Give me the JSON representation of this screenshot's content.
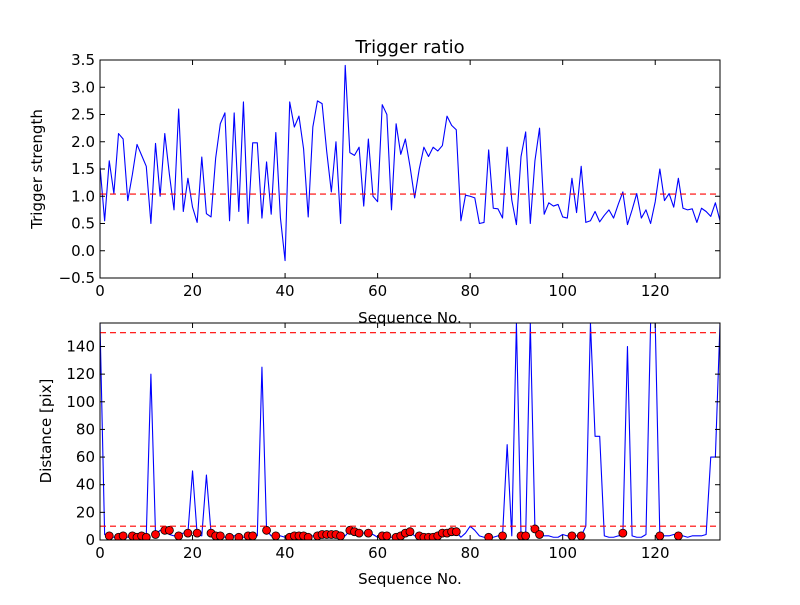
{
  "chart_data": [
    {
      "type": "line",
      "title": "Trigger ratio",
      "xlabel": "Sequence No.",
      "ylabel": "Trigger strength",
      "xlim": [
        0,
        134
      ],
      "ylim": [
        -0.5,
        3.5
      ],
      "xticks": [
        0,
        20,
        40,
        60,
        80,
        100,
        120
      ],
      "yticks": [
        -0.5,
        0.0,
        0.5,
        1.0,
        1.5,
        2.0,
        2.5,
        3.0,
        3.5
      ],
      "xtick_labels": [
        "0",
        "20",
        "40",
        "60",
        "80",
        "100",
        "120"
      ],
      "ytick_labels": [
        "−0.5",
        "0.0",
        "0.5",
        "1.0",
        "1.5",
        "2.0",
        "2.5",
        "3.0",
        "3.5"
      ],
      "series": [
        {
          "color": "#0000ff",
          "style": "line",
          "x": [
            0,
            1,
            2,
            3,
            4,
            5,
            6,
            7,
            8,
            9,
            10,
            11,
            12,
            13,
            14,
            15,
            16,
            17,
            18,
            19,
            20,
            21,
            22,
            23,
            24,
            25,
            26,
            27,
            28,
            29,
            30,
            31,
            32,
            33,
            34,
            35,
            36,
            37,
            38,
            39,
            40,
            41,
            42,
            43,
            44,
            45,
            46,
            47,
            48,
            49,
            50,
            51,
            52,
            53,
            54,
            55,
            56,
            57,
            58,
            59,
            60,
            61,
            62,
            63,
            64,
            65,
            66,
            67,
            68,
            69,
            70,
            71,
            72,
            73,
            74,
            75,
            76,
            77,
            78,
            79,
            80,
            81,
            82,
            83,
            84,
            85,
            86,
            87,
            88,
            89,
            90,
            91,
            92,
            93,
            94,
            95,
            96,
            97,
            98,
            99,
            100,
            101,
            102,
            103,
            104,
            105,
            106,
            107,
            108,
            109,
            110,
            111,
            112,
            113,
            114,
            115,
            116,
            117,
            118,
            119,
            120,
            121,
            122,
            123,
            124,
            125,
            126,
            127,
            128,
            129,
            130,
            131,
            132,
            133,
            134
          ],
          "y": [
            1.55,
            0.55,
            1.65,
            1.05,
            2.15,
            2.05,
            0.92,
            1.4,
            1.95,
            1.75,
            1.55,
            0.5,
            1.97,
            1.0,
            2.15,
            1.4,
            0.75,
            2.6,
            0.72,
            1.33,
            0.8,
            0.52,
            1.72,
            0.68,
            0.62,
            1.7,
            2.33,
            2.53,
            0.55,
            2.53,
            0.72,
            2.73,
            0.5,
            1.98,
            1.98,
            0.6,
            1.63,
            0.67,
            2.17,
            0.6,
            -0.18,
            2.73,
            2.27,
            2.47,
            1.87,
            0.62,
            2.27,
            2.75,
            2.7,
            1.82,
            1.08,
            2.0,
            0.5,
            3.4,
            1.8,
            1.75,
            1.9,
            0.82,
            2.05,
            1.0,
            0.9,
            2.68,
            2.5,
            0.75,
            2.33,
            1.77,
            2.05,
            1.55,
            0.97,
            1.5,
            1.9,
            1.73,
            1.9,
            1.83,
            1.93,
            2.47,
            2.3,
            2.22,
            0.55,
            1.02,
            1.0,
            0.97,
            0.5,
            0.52,
            1.85,
            0.78,
            0.77,
            0.6,
            1.9,
            0.93,
            0.48,
            1.73,
            2.18,
            0.5,
            1.65,
            2.25,
            0.67,
            0.88,
            0.82,
            0.85,
            0.62,
            0.6,
            1.33,
            0.7,
            1.55,
            0.52,
            0.55,
            0.72,
            0.53,
            0.65,
            0.75,
            0.6,
            0.85,
            1.08,
            0.48,
            0.75,
            1.05,
            0.6,
            0.75,
            0.5,
            0.9,
            1.5,
            0.92,
            1.05,
            0.8,
            1.33,
            0.78,
            0.75,
            0.77,
            0.52,
            0.78,
            0.72,
            0.63,
            0.88,
            0.55
          ]
        },
        {
          "color": "#ff0000",
          "style": "dashed",
          "x": [
            0,
            134
          ],
          "y": [
            1.04,
            1.04
          ]
        }
      ]
    },
    {
      "type": "line",
      "title": "",
      "xlabel": "Sequence No.",
      "ylabel": "Distance [pix]",
      "xlim": [
        0,
        134
      ],
      "ylim": [
        0,
        157
      ],
      "xticks": [
        0,
        20,
        40,
        60,
        80,
        100,
        120
      ],
      "yticks": [
        0,
        20,
        40,
        60,
        80,
        100,
        120,
        140
      ],
      "xtick_labels": [
        "0",
        "20",
        "40",
        "60",
        "80",
        "100",
        "120"
      ],
      "ytick_labels": [
        "0",
        "20",
        "40",
        "60",
        "80",
        "100",
        "120",
        "140"
      ],
      "series": [
        {
          "color": "#0000ff",
          "style": "line",
          "x": [
            0,
            1,
            2,
            3,
            4,
            5,
            6,
            7,
            8,
            9,
            10,
            11,
            12,
            13,
            14,
            15,
            16,
            17,
            18,
            19,
            20,
            21,
            22,
            23,
            24,
            25,
            26,
            27,
            28,
            29,
            30,
            31,
            32,
            33,
            34,
            35,
            36,
            37,
            38,
            39,
            40,
            41,
            42,
            43,
            44,
            45,
            46,
            47,
            48,
            49,
            50,
            51,
            52,
            53,
            54,
            55,
            56,
            57,
            58,
            59,
            60,
            61,
            62,
            63,
            64,
            65,
            66,
            67,
            68,
            69,
            70,
            71,
            72,
            73,
            74,
            75,
            76,
            77,
            78,
            79,
            80,
            81,
            82,
            83,
            84,
            85,
            86,
            87,
            88,
            89,
            90,
            91,
            92,
            93,
            94,
            95,
            96,
            97,
            98,
            99,
            100,
            101,
            102,
            103,
            104,
            105,
            106,
            107,
            108,
            109,
            110,
            111,
            112,
            113,
            114,
            115,
            116,
            117,
            118,
            119,
            120,
            121,
            122,
            123,
            124,
            125,
            126,
            127,
            128,
            129,
            130,
            131,
            132,
            133,
            134
          ],
          "y": [
            157,
            4,
            2,
            2,
            3,
            3,
            2,
            2,
            3,
            2,
            3,
            120,
            4,
            7,
            7,
            4,
            3,
            4,
            5,
            5,
            50,
            4,
            3,
            47,
            5,
            4,
            3,
            2,
            3,
            3,
            3,
            2,
            2,
            3,
            3,
            125,
            7,
            3,
            2,
            3,
            2,
            3,
            3,
            3,
            3,
            2,
            3,
            4,
            4,
            4,
            4,
            4,
            3,
            3,
            7,
            6,
            5,
            5,
            5,
            4,
            2,
            3,
            3,
            2,
            2,
            3,
            5,
            6,
            3,
            2,
            2,
            2,
            3,
            2,
            5,
            5,
            6,
            6,
            2,
            5,
            10,
            7,
            3,
            2,
            2,
            2,
            3,
            3,
            69,
            3,
            157,
            3,
            3,
            157,
            8,
            4,
            3,
            3,
            2,
            2,
            4,
            3,
            3,
            3,
            3,
            10,
            157,
            75,
            75,
            3,
            2,
            2,
            3,
            3,
            140,
            3,
            2,
            2,
            4,
            157,
            157,
            3,
            3,
            3,
            4,
            3,
            3,
            2,
            3,
            3,
            3,
            4,
            60,
            60,
            157
          ]
        },
        {
          "color": "#ff0000",
          "style": "markers",
          "x": [
            2,
            4,
            5,
            7,
            8,
            9,
            10,
            12,
            14,
            15,
            17,
            19,
            21,
            24,
            25,
            26,
            28,
            30,
            32,
            33,
            36,
            38,
            41,
            42,
            43,
            44,
            45,
            47,
            48,
            49,
            50,
            51,
            52,
            54,
            55,
            56,
            58,
            61,
            62,
            64,
            65,
            66,
            67,
            69,
            70,
            71,
            72,
            73,
            74,
            75,
            76,
            77,
            84,
            87,
            91,
            92,
            94,
            95,
            102,
            104,
            113,
            121,
            125
          ],
          "y": [
            3,
            2,
            3,
            3,
            2,
            3,
            2,
            4,
            7,
            7,
            3,
            5,
            5,
            5,
            3,
            3,
            2,
            2,
            3,
            3,
            7,
            3,
            2,
            3,
            3,
            3,
            2,
            3,
            4,
            4,
            4,
            4,
            3,
            7,
            6,
            5,
            5,
            3,
            3,
            2,
            3,
            5,
            6,
            3,
            2,
            2,
            2,
            3,
            5,
            5,
            6,
            6,
            2,
            3,
            3,
            3,
            8,
            4,
            3,
            3,
            5,
            3,
            3
          ]
        },
        {
          "color": "#ff0000",
          "style": "dashed",
          "x": [
            0,
            134
          ],
          "y": [
            150,
            150
          ]
        },
        {
          "color": "#ff0000",
          "style": "dashed",
          "x": [
            0,
            134
          ],
          "y": [
            10,
            10
          ]
        }
      ]
    }
  ]
}
